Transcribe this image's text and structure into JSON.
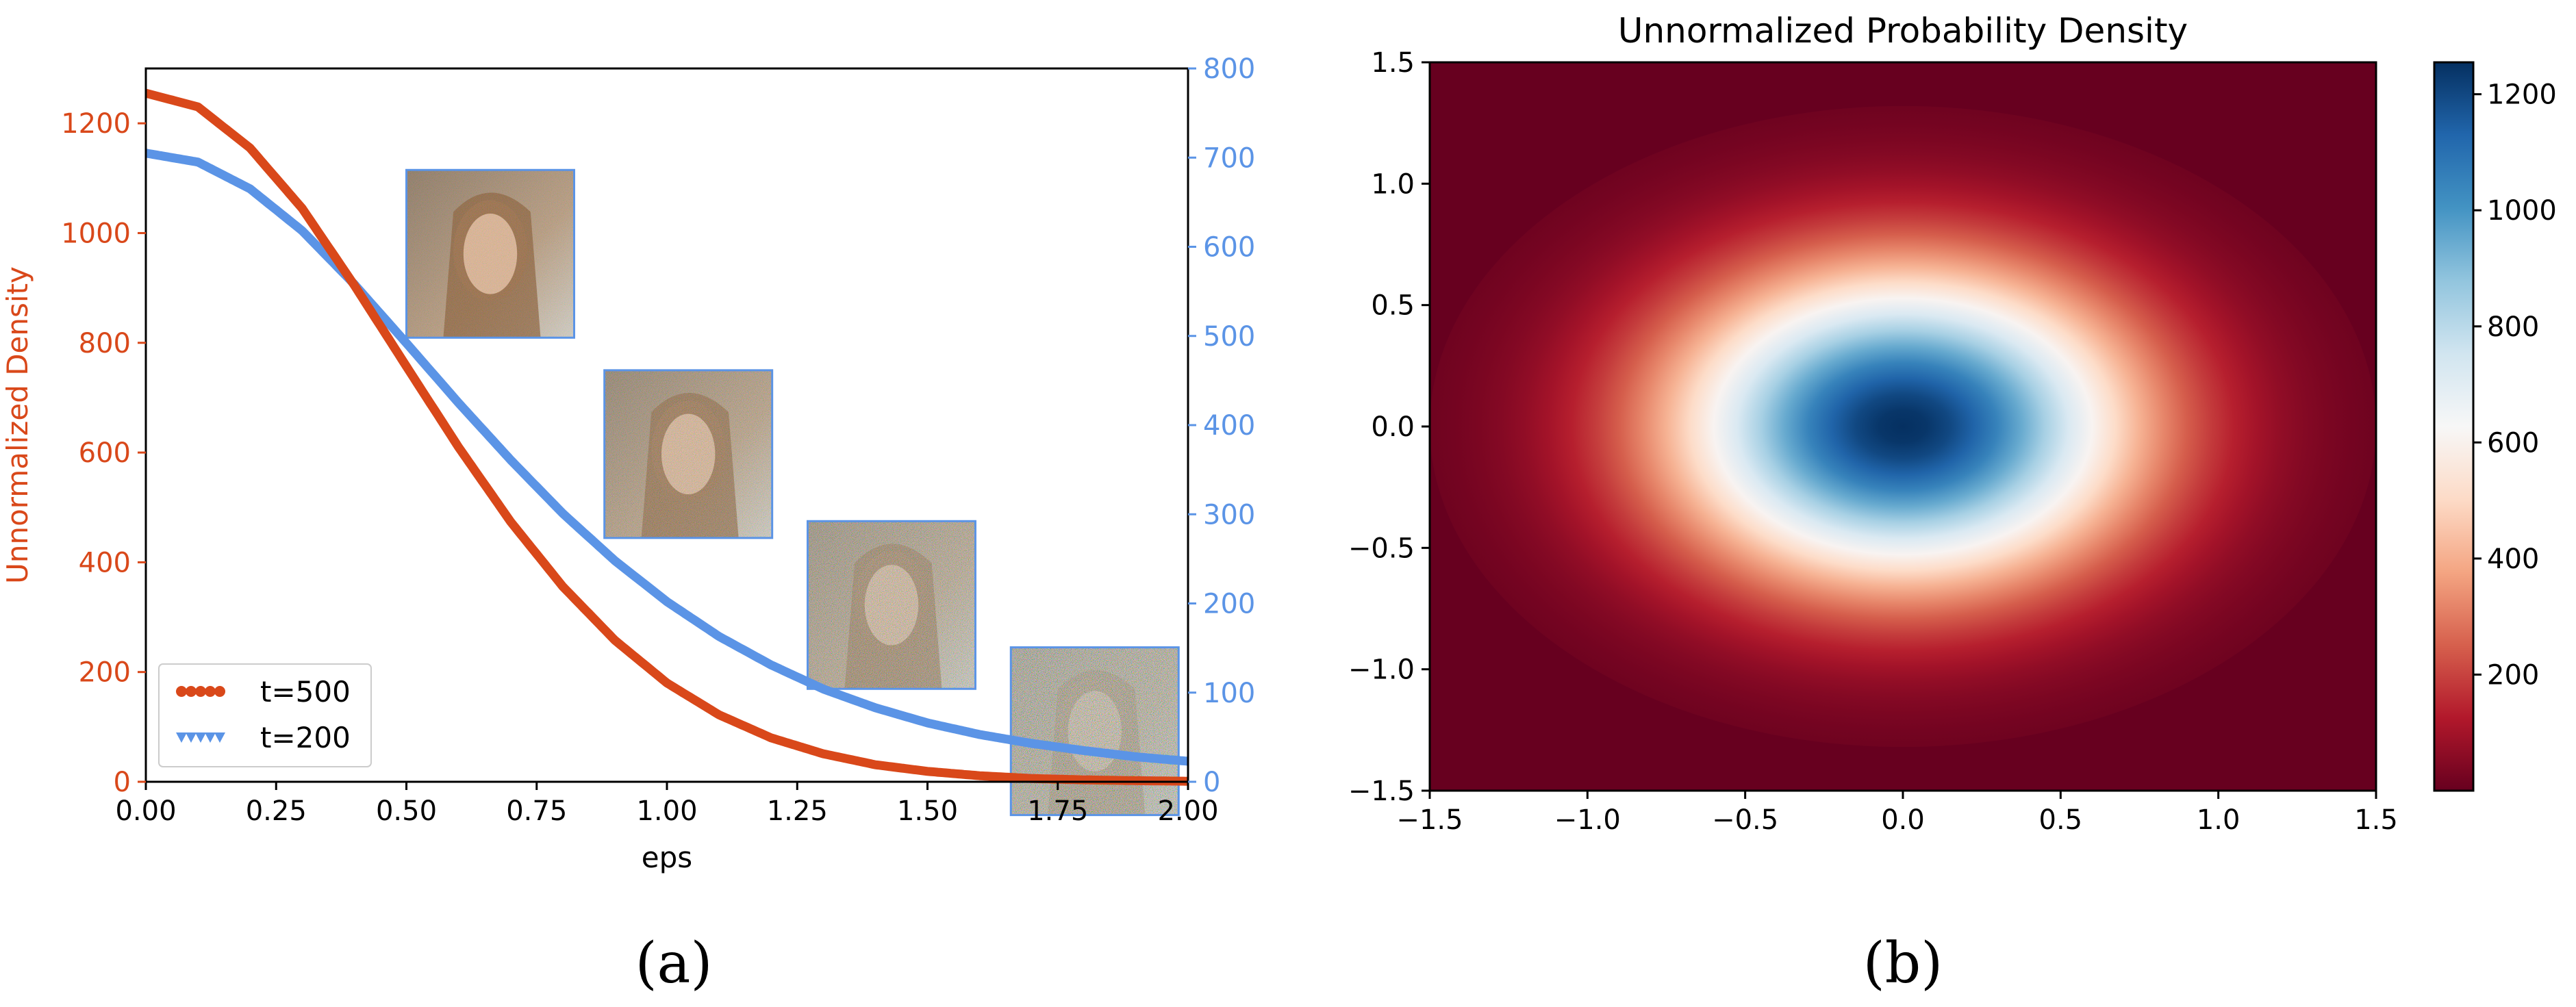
{
  "chart_data": [
    {
      "type": "line",
      "panel_label": "(a)",
      "xlabel": "eps",
      "ylabel": "Unnormalized Density",
      "xlim": [
        0,
        2.0
      ],
      "ylim_left": [
        0,
        1300
      ],
      "ylim_right": [
        0,
        800
      ],
      "xticks": [
        "0.00",
        "0.25",
        "0.50",
        "0.75",
        "1.00",
        "1.25",
        "1.50",
        "1.75",
        "2.00"
      ],
      "yticks_left": [
        "0",
        "200",
        "400",
        "600",
        "800",
        "1000",
        "1200"
      ],
      "yticks_right": [
        "0",
        "100",
        "200",
        "300",
        "400",
        "500",
        "600",
        "700",
        "800"
      ],
      "legend_position": "lower-left",
      "colors": {
        "t500": "#d9481a",
        "t200": "#5b94e6"
      },
      "series": [
        {
          "name": "t=500",
          "axis": "left",
          "x": [
            0,
            0.1,
            0.2,
            0.3,
            0.4,
            0.5,
            0.6,
            0.7,
            0.8,
            0.9,
            1.0,
            1.1,
            1.2,
            1.3,
            1.4,
            1.5,
            1.6,
            1.7,
            1.8,
            1.9,
            2.0
          ],
          "y": [
            1255,
            1230,
            1155,
            1045,
            905,
            757,
            610,
            474,
            356,
            258,
            180,
            122,
            80,
            51,
            31,
            19,
            11,
            6,
            3.5,
            2,
            1
          ]
        },
        {
          "name": "t=200",
          "axis": "right",
          "x": [
            0,
            0.1,
            0.2,
            0.3,
            0.4,
            0.5,
            0.6,
            0.7,
            0.8,
            0.9,
            1.0,
            1.1,
            1.2,
            1.3,
            1.4,
            1.5,
            1.6,
            1.7,
            1.8,
            1.9,
            2.0
          ],
          "y": [
            705,
            695,
            665,
            618,
            558,
            492,
            425,
            361,
            301,
            248,
            202,
            163,
            131,
            104,
            83,
            66,
            53,
            43,
            35,
            28,
            23
          ]
        }
      ],
      "thumbnails": [
        {
          "x": 0.5,
          "y_left": 1115,
          "noise": 0.18
        },
        {
          "x": 0.88,
          "y_left": 750,
          "noise": 0.35
        },
        {
          "x": 1.27,
          "y_left": 475,
          "noise": 0.55
        },
        {
          "x": 1.66,
          "y_left": 245,
          "noise": 0.75
        }
      ]
    },
    {
      "type": "heatmap",
      "panel_label": "(b)",
      "title": "Unnormalized Probability Density",
      "xlim": [
        -1.5,
        1.5
      ],
      "ylim": [
        -1.5,
        1.5
      ],
      "xticks": [
        "−1.5",
        "−1.0",
        "−0.5",
        "0.0",
        "0.5",
        "1.0",
        "1.5"
      ],
      "yticks": [
        "1.5",
        "1.0",
        "0.5",
        "0.0",
        "−0.5",
        "−1.0",
        "−1.5"
      ],
      "peak": 1255,
      "sigma_x": 0.5,
      "sigma_y": 0.44,
      "colorbar_range": [
        0,
        1255
      ],
      "colorbar_ticks": [
        "200",
        "400",
        "600",
        "800",
        "1000",
        "1200"
      ],
      "colormap": [
        "#67001f",
        "#b2182b",
        "#d6604d",
        "#f4a582",
        "#fddbc7",
        "#f7f7f7",
        "#d1e5f0",
        "#92c5de",
        "#4393c3",
        "#2166ac",
        "#053061"
      ]
    }
  ]
}
